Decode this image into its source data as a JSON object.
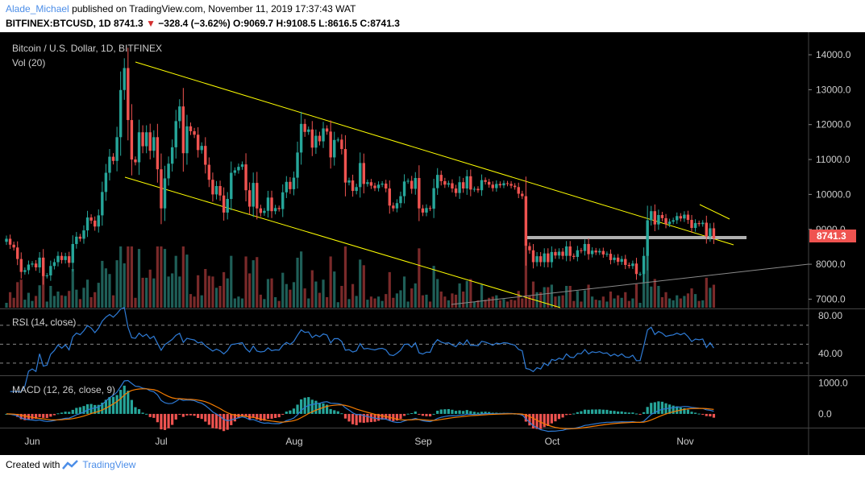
{
  "header": {
    "author": "Alade_Michael",
    "published": "published on TradingView.com, November 11, 2019 17:37:43 WAT",
    "symbol": "BITFINEX:BTCUSD, 1D",
    "last": "8741.3",
    "change": "−328.4 (−3.62%)",
    "o_label": "O:",
    "o": "9069.7",
    "h_label": "H:",
    "h": "9108.5",
    "l_label": "L:",
    "l": "8616.5",
    "c_label": "C:",
    "c": "8741.3"
  },
  "footer": {
    "created": "Created with",
    "brand": "TradingView"
  },
  "colors": {
    "background": "#000000",
    "up": "#26a69a",
    "down": "#ef5350",
    "vol_up": "#1f5f58",
    "vol_down": "#7a2a2a",
    "trendline": "#ffff00",
    "support": "#b0b0b0",
    "rsi": "#2e7bd6",
    "macd": "#2e7bd6",
    "signal": "#f57c00",
    "price_label_bg": "#ef5350"
  },
  "chart_data": [
    {
      "type": "candlestick",
      "title": "Bitcoin / U.S. Dollar, 1D, BITFINEX",
      "volume_label": "Vol (20)",
      "y_ticks": [
        "14000.0",
        "13000.0",
        "12000.0",
        "11000.0",
        "10000.0",
        "9000.0",
        "8000.0",
        "7000.0"
      ],
      "ylim": [
        6700,
        14600
      ],
      "last_price": "8741.3",
      "x_ticks": [
        "Jun",
        "Jul",
        "Aug",
        "Sep",
        "Oct",
        "Nov"
      ],
      "close": [
        8730,
        8560,
        8480,
        8150,
        7780,
        7830,
        7990,
        8020,
        7910,
        8190,
        7660,
        7680,
        7950,
        8060,
        8240,
        8120,
        8230,
        8040,
        8580,
        8790,
        8730,
        8970,
        9340,
        9250,
        9080,
        9400,
        10070,
        10620,
        11080,
        10960,
        11640,
        12990,
        13620,
        12130,
        11000,
        10920,
        11780,
        11380,
        11780,
        11250,
        11640,
        10720,
        9600,
        10460,
        10880,
        11350,
        12100,
        12520,
        11180,
        11950,
        11810,
        11710,
        11270,
        11390,
        10850,
        10420,
        10000,
        10240,
        9970,
        9480,
        9870,
        10620,
        10690,
        10790,
        10860,
        10120,
        9650,
        10330,
        9600,
        9470,
        9530,
        9910,
        9520,
        9610,
        9580,
        10060,
        10360,
        10150,
        10480,
        11200,
        12020,
        11790,
        11860,
        11340,
        11680,
        11520,
        11890,
        11800,
        11060,
        11560,
        11570,
        11300,
        10340,
        10400,
        10100,
        10210,
        10900,
        10300,
        10350,
        10250,
        10180,
        10280,
        10310,
        10170,
        9680,
        9600,
        9750,
        9950,
        10370,
        10390,
        10160,
        10470,
        9600,
        9480,
        9610,
        9590,
        10180,
        10560,
        10380,
        10280,
        10320,
        10170,
        10040,
        10350,
        10170,
        10520,
        10140,
        10160,
        10120,
        10410,
        10360,
        10280,
        10180,
        10300,
        10260,
        10320,
        10300,
        10250,
        10210,
        10020,
        9950,
        8520,
        8400,
        8060,
        8230,
        8060,
        8310,
        8060,
        8350,
        8250,
        8360,
        8240,
        8510,
        8240,
        8210,
        8400,
        8380,
        8580,
        8290,
        8390,
        8340,
        8380,
        8280,
        8300,
        8120,
        8190,
        8070,
        8150,
        7980,
        7950,
        8020,
        7720,
        7720,
        8240,
        9260,
        9520,
        9140,
        9410,
        9320,
        9150,
        9220,
        9260,
        9380,
        9310,
        9420,
        9270,
        9040,
        9180,
        9150,
        9190,
        8790,
        9030,
        8741
      ]
    },
    {
      "type": "line",
      "title": "RSI (14, close)",
      "y_ticks": [
        "80.00",
        "40.00"
      ],
      "levels": [
        70,
        50,
        30
      ],
      "ylim": [
        18,
        86
      ]
    },
    {
      "type": "line",
      "title": "MACD (12, 26, close, 9)",
      "y_ticks": [
        "1000.0",
        "0.0"
      ],
      "ylim": [
        -420,
        1200
      ]
    }
  ]
}
